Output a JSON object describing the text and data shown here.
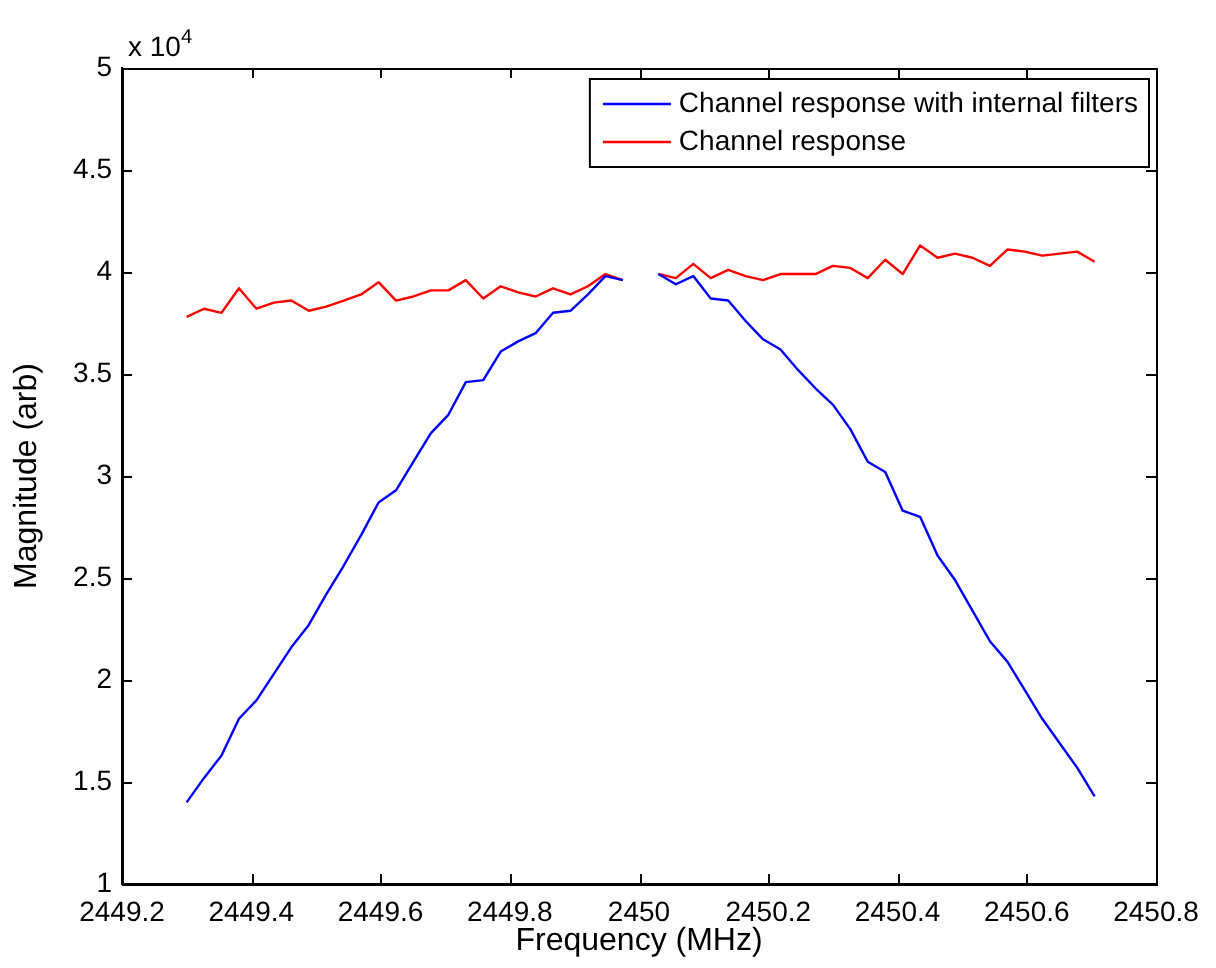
{
  "chart_data": {
    "type": "line",
    "xlabel": "Frequency (MHz)",
    "ylabel": "Magnitude (arb)",
    "annotations": [
      "x 10$^{4}$"
    ],
    "x": [
      2449.3,
      2449.327,
      2449.354,
      2449.381,
      2449.408,
      2449.435,
      2449.462,
      2449.489,
      2449.516,
      2449.543,
      2449.57,
      2449.597,
      2449.624,
      2449.651,
      2449.678,
      2449.705,
      2449.732,
      2449.759,
      2449.786,
      2449.813,
      2449.84,
      2449.867,
      2449.894,
      2449.921,
      2449.948,
      2449.975,
      2450.0,
      2450.03,
      2450.057,
      2450.084,
      2450.111,
      2450.138,
      2450.165,
      2450.192,
      2450.219,
      2450.246,
      2450.273,
      2450.3,
      2450.327,
      2450.354,
      2450.381,
      2450.408,
      2450.435,
      2450.462,
      2450.489,
      2450.516,
      2450.543,
      2450.57,
      2450.597,
      2450.624,
      2450.651,
      2450.678,
      2450.705
    ],
    "series": [
      {
        "name": "Channel response with internal filters",
        "color": "#0000ff",
        "values": [
          1.4,
          1.52,
          1.63,
          1.81,
          1.9,
          2.03,
          2.16,
          2.27,
          2.42,
          2.56,
          2.71,
          2.87,
          2.93,
          3.07,
          3.21,
          3.3,
          3.46,
          3.47,
          3.61,
          3.66,
          3.7,
          3.8,
          3.81,
          3.89,
          3.98,
          3.96,
          null,
          3.99,
          3.94,
          3.98,
          3.87,
          3.86,
          3.76,
          3.67,
          3.62,
          3.52,
          3.43,
          3.35,
          3.23,
          3.07,
          3.02,
          2.83,
          2.8,
          2.61,
          2.49,
          2.34,
          2.19,
          2.09,
          1.95,
          1.81,
          1.69,
          1.57,
          1.43
        ]
      },
      {
        "name": "Channel response",
        "color": "#ff0000",
        "values": [
          3.78,
          3.82,
          3.8,
          3.92,
          3.82,
          3.85,
          3.86,
          3.81,
          3.83,
          3.86,
          3.89,
          3.95,
          3.86,
          3.88,
          3.91,
          3.91,
          3.96,
          3.87,
          3.93,
          3.9,
          3.88,
          3.92,
          3.89,
          3.93,
          3.99,
          3.96,
          null,
          3.99,
          3.97,
          4.04,
          3.97,
          4.01,
          3.98,
          3.96,
          3.99,
          3.99,
          3.99,
          4.03,
          4.02,
          3.97,
          4.06,
          3.99,
          4.13,
          4.07,
          4.09,
          4.07,
          4.03,
          4.11,
          4.1,
          4.08,
          4.09,
          4.1,
          4.05
        ]
      }
    ],
    "xlim": [
      2449.2,
      2450.8
    ],
    "xticks": [
      2449.2,
      2449.4,
      2449.6,
      2449.8,
      2450,
      2450.2,
      2450.4,
      2450.6,
      2450.8
    ],
    "ylim": [
      1,
      5
    ],
    "yticks": [
      1,
      1.5,
      2,
      2.5,
      3,
      3.5,
      4,
      4.5,
      5
    ],
    "grid": false,
    "legend": "top right",
    "marker": "none",
    "line_style": "solid"
  }
}
